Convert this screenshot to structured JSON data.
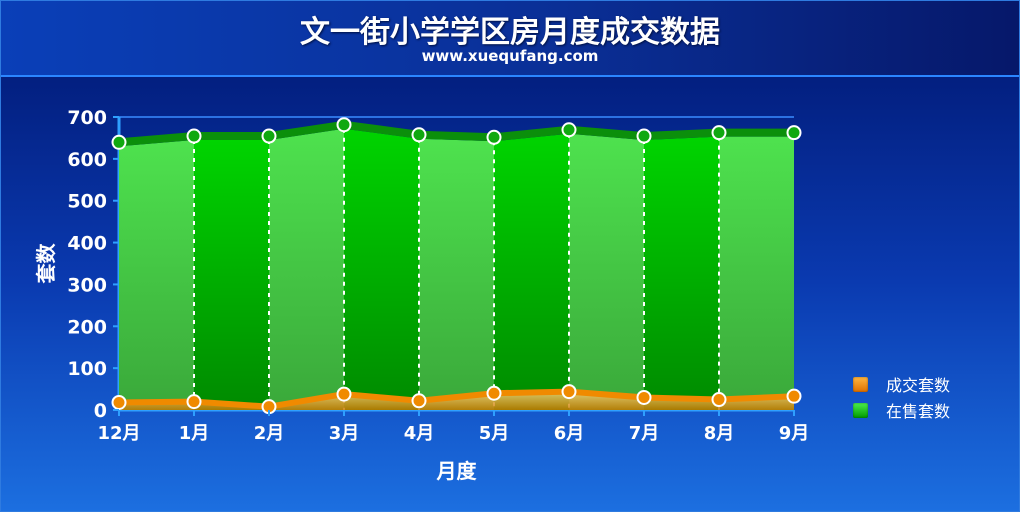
{
  "header": {
    "title": "文一街小学学区房月度成交数据",
    "subtitle": "www.xuequfang.com"
  },
  "chart_data": {
    "type": "area",
    "title": "文一街小学学区房月度成交数据",
    "subtitle": "www.xuequfang.com",
    "xlabel": "月度",
    "ylabel": "套数",
    "categories": [
      "12月",
      "1月",
      "2月",
      "3月",
      "4月",
      "5月",
      "6月",
      "7月",
      "8月",
      "9月"
    ],
    "ylim": [
      0,
      700
    ],
    "yticks": [
      "0",
      "100",
      "200",
      "300",
      "400",
      "500",
      "600",
      "700"
    ],
    "grid": false,
    "legend_position": "right",
    "series": [
      {
        "name": "成交套数",
        "color": "#f08a00",
        "values": [
          18,
          20,
          8,
          38,
          22,
          40,
          44,
          30,
          25,
          33
        ]
      },
      {
        "name": "在售套数",
        "color": "#1fbf1f",
        "values": [
          630,
          645,
          645,
          672,
          648,
          642,
          660,
          645,
          653,
          653
        ]
      }
    ]
  },
  "colors": {
    "background_top": "#00156e",
    "background_bottom": "#1c6fe0",
    "green_light": "#3ed83e",
    "green_dark": "#00c800",
    "orange": "#f08a00"
  }
}
